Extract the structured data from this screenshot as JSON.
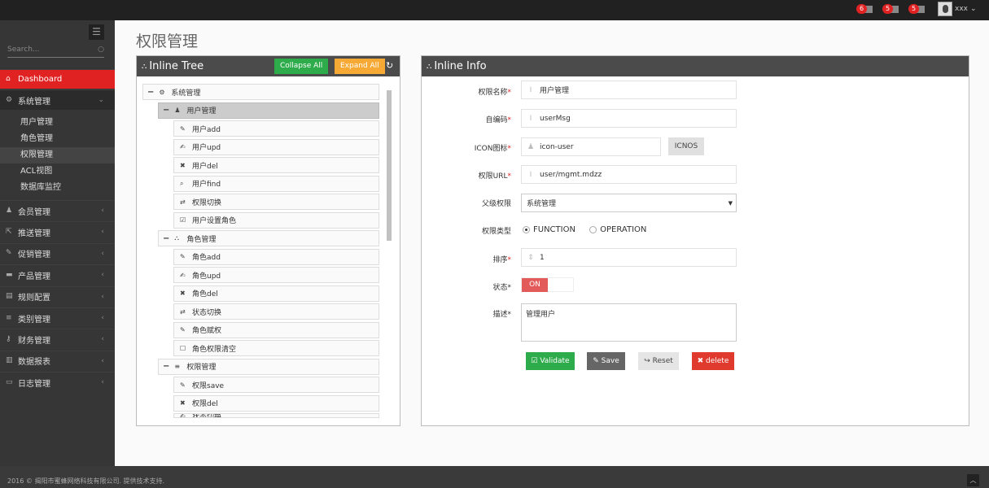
{
  "topbar": {
    "notifications": [
      {
        "count": "6",
        "icon": "bell-icon"
      },
      {
        "count": "5",
        "icon": "envelope-icon"
      },
      {
        "count": "5",
        "icon": "calendar-icon"
      }
    ],
    "user": "xxx"
  },
  "sidebar": {
    "search_placeholder": "Search...",
    "dashboard": "Dashboard",
    "system": "系统管理",
    "sub_items": [
      "用户管理",
      "角色管理",
      "权限管理",
      "ACL视图",
      "数据库监控"
    ],
    "items": [
      {
        "label": "会员管理",
        "icon": "user-icon"
      },
      {
        "label": "推送管理",
        "icon": "share-icon"
      },
      {
        "label": "促销管理",
        "icon": "pencil-icon"
      },
      {
        "label": "产品管理",
        "icon": "briefcase-icon"
      },
      {
        "label": "规则配置",
        "icon": "list-alt-icon"
      },
      {
        "label": "类别管理",
        "icon": "bars-icon"
      },
      {
        "label": "财务管理",
        "icon": "key-icon"
      },
      {
        "label": "数据报表",
        "icon": "chart-icon"
      },
      {
        "label": "日志管理",
        "icon": "credit-card-icon"
      }
    ]
  },
  "page_title": "权限管理",
  "tree": {
    "title": "Inline Tree",
    "collapse": "Collapse All",
    "expand": "Expand All",
    "rows": [
      {
        "label": "系统管理",
        "level": 0,
        "icon": "cogs-icon",
        "toggle": "−"
      },
      {
        "label": "用户管理",
        "level": 1,
        "icon": "user-icon",
        "toggle": "−",
        "selected": true
      },
      {
        "label": "用户add",
        "level": 2,
        "icon": "pencil-icon"
      },
      {
        "label": "用户upd",
        "level": 2,
        "icon": "edit-icon"
      },
      {
        "label": "用户del",
        "level": 2,
        "icon": "times-icon"
      },
      {
        "label": "用户find",
        "level": 2,
        "icon": "search-icon"
      },
      {
        "label": "权限切换",
        "level": 2,
        "icon": "retweet-icon"
      },
      {
        "label": "用户设置角色",
        "level": 2,
        "icon": "check-square-icon"
      },
      {
        "label": "角色管理",
        "level": 1,
        "icon": "sitemap-icon",
        "toggle": "−"
      },
      {
        "label": "角色add",
        "level": 2,
        "icon": "pencil-icon"
      },
      {
        "label": "角色upd",
        "level": 2,
        "icon": "edit-icon"
      },
      {
        "label": "角色del",
        "level": 2,
        "icon": "times-icon"
      },
      {
        "label": "状态切换",
        "level": 2,
        "icon": "retweet-icon"
      },
      {
        "label": "角色赋权",
        "level": 2,
        "icon": "pencil-icon"
      },
      {
        "label": "角色权限清空",
        "level": 2,
        "icon": "square-icon"
      },
      {
        "label": "权限管理",
        "level": 1,
        "icon": "bars-icon",
        "toggle": "−"
      },
      {
        "label": "权限save",
        "level": 2,
        "icon": "pencil-icon"
      },
      {
        "label": "权限del",
        "level": 2,
        "icon": "times-icon"
      },
      {
        "label": "状态切换",
        "level": 2,
        "icon": "edit-icon"
      }
    ]
  },
  "info": {
    "title": "Inline Info",
    "name": {
      "label": "权限名称",
      "value": "用户管理"
    },
    "code": {
      "label": "自编码",
      "value": "userMsg"
    },
    "icon": {
      "label": "ICON图标",
      "value": "icon-user",
      "button": "ICNOS"
    },
    "url": {
      "label": "权限URL",
      "value": "user/mgmt.mdzz"
    },
    "parent": {
      "label": "父级权限",
      "value": "系统管理"
    },
    "type": {
      "label": "权限类型",
      "options": [
        "FUNCTION",
        "OPERATION"
      ],
      "selected": "FUNCTION"
    },
    "order": {
      "label": "排序",
      "value": "1"
    },
    "status": {
      "label": "状态",
      "value": "ON"
    },
    "desc": {
      "label": "描述",
      "value": "管理用户"
    },
    "buttons": {
      "validate": "Validate",
      "save": "Save",
      "reset": "Reset",
      "delete": "delete"
    }
  },
  "colors": {
    "accent": "#e02222",
    "green": "#2eab4b",
    "orange": "#f7a935"
  },
  "footer": "2016 © 揭阳市蜜蜂网络科技有限公司. 提供技术支持."
}
